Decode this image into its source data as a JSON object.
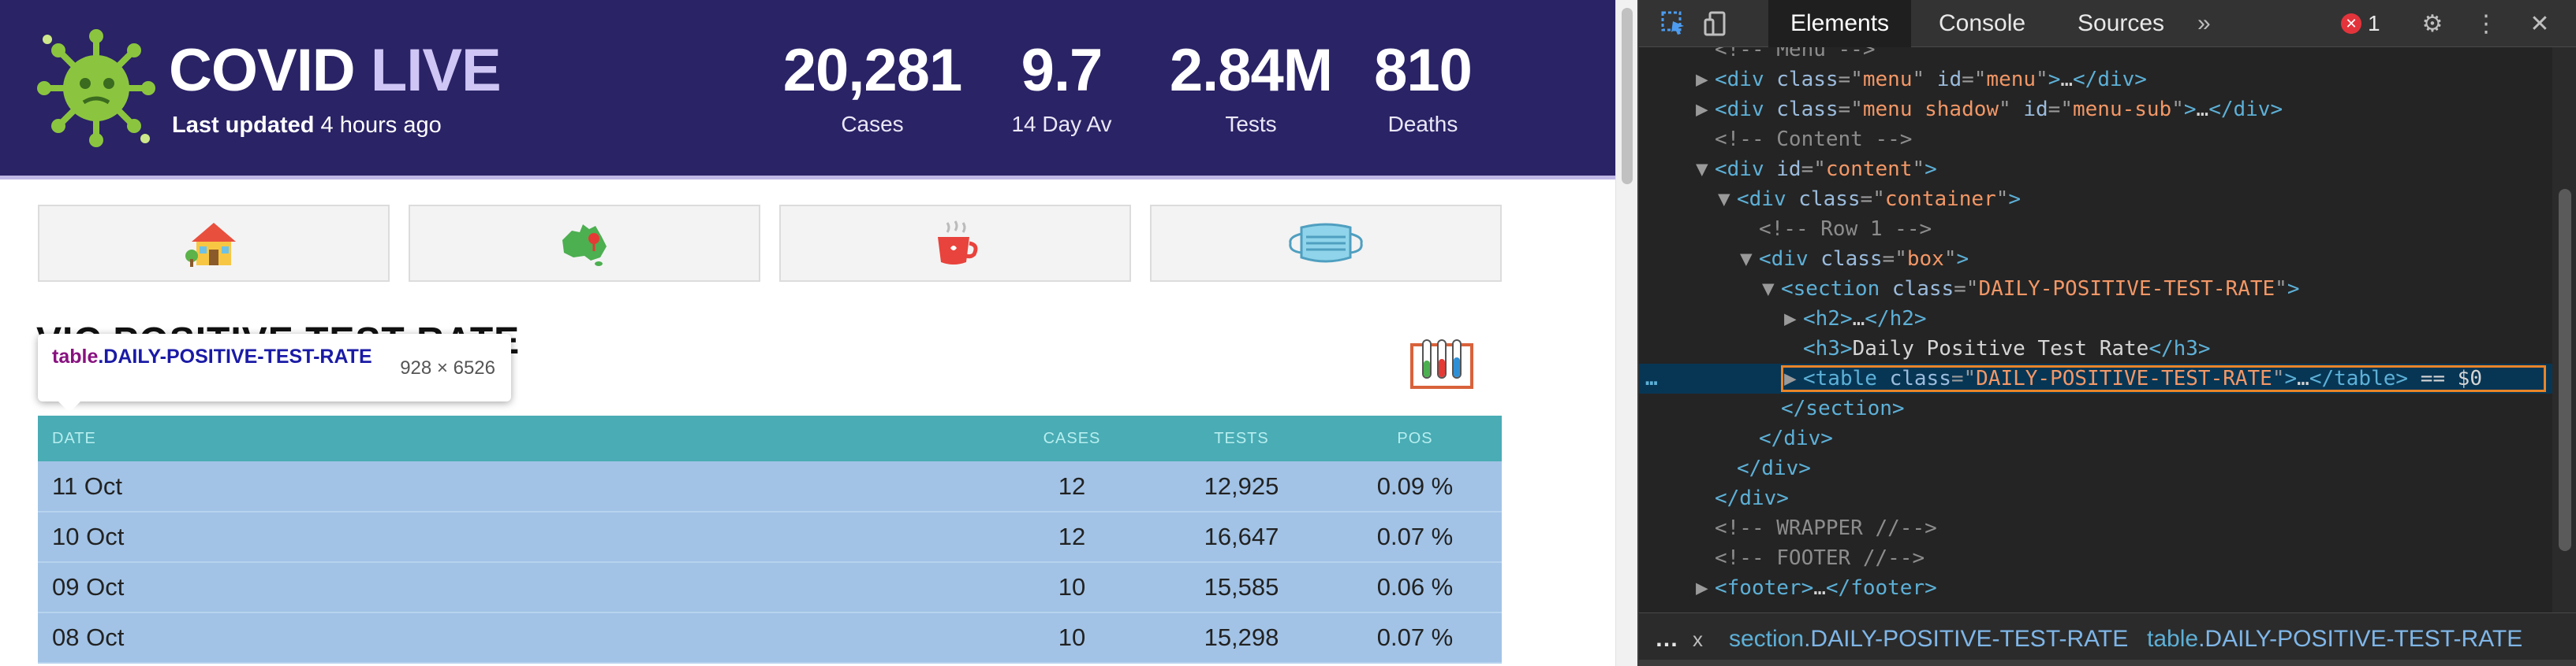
{
  "site": {
    "brand_a": "COVID",
    "brand_b": "LIVE",
    "updated_prefix": "Last updated",
    "updated_value": "4 hours ago",
    "colors": {
      "header": "#2a2366",
      "table_header": "#4aacb4",
      "table_row": "#a2c3e6"
    }
  },
  "stats": [
    {
      "value": "20,281",
      "label": "Cases"
    },
    {
      "value": "9.7",
      "label": "14 Day Av"
    },
    {
      "value": "2.84M",
      "label": "Tests"
    },
    {
      "value": "810",
      "label": "Deaths"
    }
  ],
  "quick_links": [
    "house-icon",
    "australia-map-icon",
    "coffee-cup-icon",
    "face-mask-icon"
  ],
  "section_title": "VIC POSITIVE TEST RATE",
  "tooltip": {
    "tag": "table",
    "class": ".DAILY-POSITIVE-TEST-RATE",
    "dims": "928 × 6526"
  },
  "table": {
    "headers": [
      "DATE",
      "CASES",
      "TESTS",
      "POS"
    ],
    "rows": [
      [
        "11 Oct",
        "12",
        "12,925",
        "0.09 %"
      ],
      [
        "10 Oct",
        "12",
        "16,647",
        "0.07 %"
      ],
      [
        "09 Oct",
        "10",
        "15,585",
        "0.06 %"
      ],
      [
        "08 Oct",
        "10",
        "15,298",
        "0.07 %"
      ]
    ]
  },
  "devtools": {
    "tabs": [
      "Elements",
      "Console",
      "Sources"
    ],
    "more_tabs": "»",
    "error_count": "1",
    "dom": [
      {
        "kind": "comment",
        "indent": 0,
        "text": "<!-- Menu -->"
      },
      {
        "kind": "tag",
        "indent": 0,
        "arrow": "▶",
        "tag": "div",
        "attrs": [
          [
            "class",
            "menu"
          ],
          [
            "id",
            "menu"
          ]
        ],
        "inner": "…",
        "close": "div"
      },
      {
        "kind": "tag",
        "indent": 0,
        "arrow": "▶",
        "tag": "div",
        "attrs": [
          [
            "class",
            "menu shadow"
          ],
          [
            "id",
            "menu-sub"
          ]
        ],
        "inner": "…",
        "close": "div"
      },
      {
        "kind": "comment",
        "indent": 0,
        "text": "<!-- Content -->"
      },
      {
        "kind": "tag",
        "indent": 0,
        "arrow": "▼",
        "tag": "div",
        "attrs": [
          [
            "id",
            "content"
          ]
        ]
      },
      {
        "kind": "tag",
        "indent": 1,
        "arrow": "▼",
        "tag": "div",
        "attrs": [
          [
            "class",
            "container"
          ]
        ]
      },
      {
        "kind": "comment",
        "indent": 2,
        "text": "<!-- Row 1 -->"
      },
      {
        "kind": "tag",
        "indent": 2,
        "arrow": "▼",
        "tag": "div",
        "attrs": [
          [
            "class",
            "box"
          ]
        ]
      },
      {
        "kind": "tag",
        "indent": 3,
        "arrow": "▼",
        "tag": "section",
        "attrs": [
          [
            "class",
            "DAILY-POSITIVE-TEST-RATE"
          ]
        ]
      },
      {
        "kind": "tag",
        "indent": 4,
        "arrow": "▶",
        "tag": "h2",
        "attrs": [],
        "inner": "…",
        "close": "h2"
      },
      {
        "kind": "tag",
        "indent": 4,
        "arrow": "",
        "tag": "h3",
        "attrs": [],
        "inner": "Daily Positive Test Rate",
        "close": "h3"
      },
      {
        "kind": "tag",
        "indent": 4,
        "arrow": "▶",
        "tag": "table",
        "attrs": [
          [
            "class",
            "DAILY-POSITIVE-TEST-RATE"
          ]
        ],
        "inner": "…",
        "close": "table",
        "suffix": " == $0",
        "selected": true
      },
      {
        "kind": "close",
        "indent": 3,
        "tag": "section"
      },
      {
        "kind": "close",
        "indent": 2,
        "tag": "div"
      },
      {
        "kind": "close",
        "indent": 1,
        "tag": "div"
      },
      {
        "kind": "close",
        "indent": 0,
        "tag": "div"
      },
      {
        "kind": "comment",
        "indent": 0,
        "text": "<!-- WRAPPER //-->"
      },
      {
        "kind": "comment",
        "indent": 0,
        "text": "<!-- FOOTER //-->"
      },
      {
        "kind": "tag",
        "indent": 0,
        "arrow": "▶",
        "tag": "footer",
        "attrs": [],
        "inner": "…",
        "close": "footer"
      }
    ],
    "selected_dots": "…",
    "breadcrumb": {
      "more": "…",
      "close": "x",
      "items": [
        {
          "tag": "section",
          "cls": ".DAILY-POSITIVE-TEST-RATE"
        },
        {
          "tag": "table",
          "cls": ".DAILY-POSITIVE-TEST-RATE"
        }
      ]
    }
  }
}
